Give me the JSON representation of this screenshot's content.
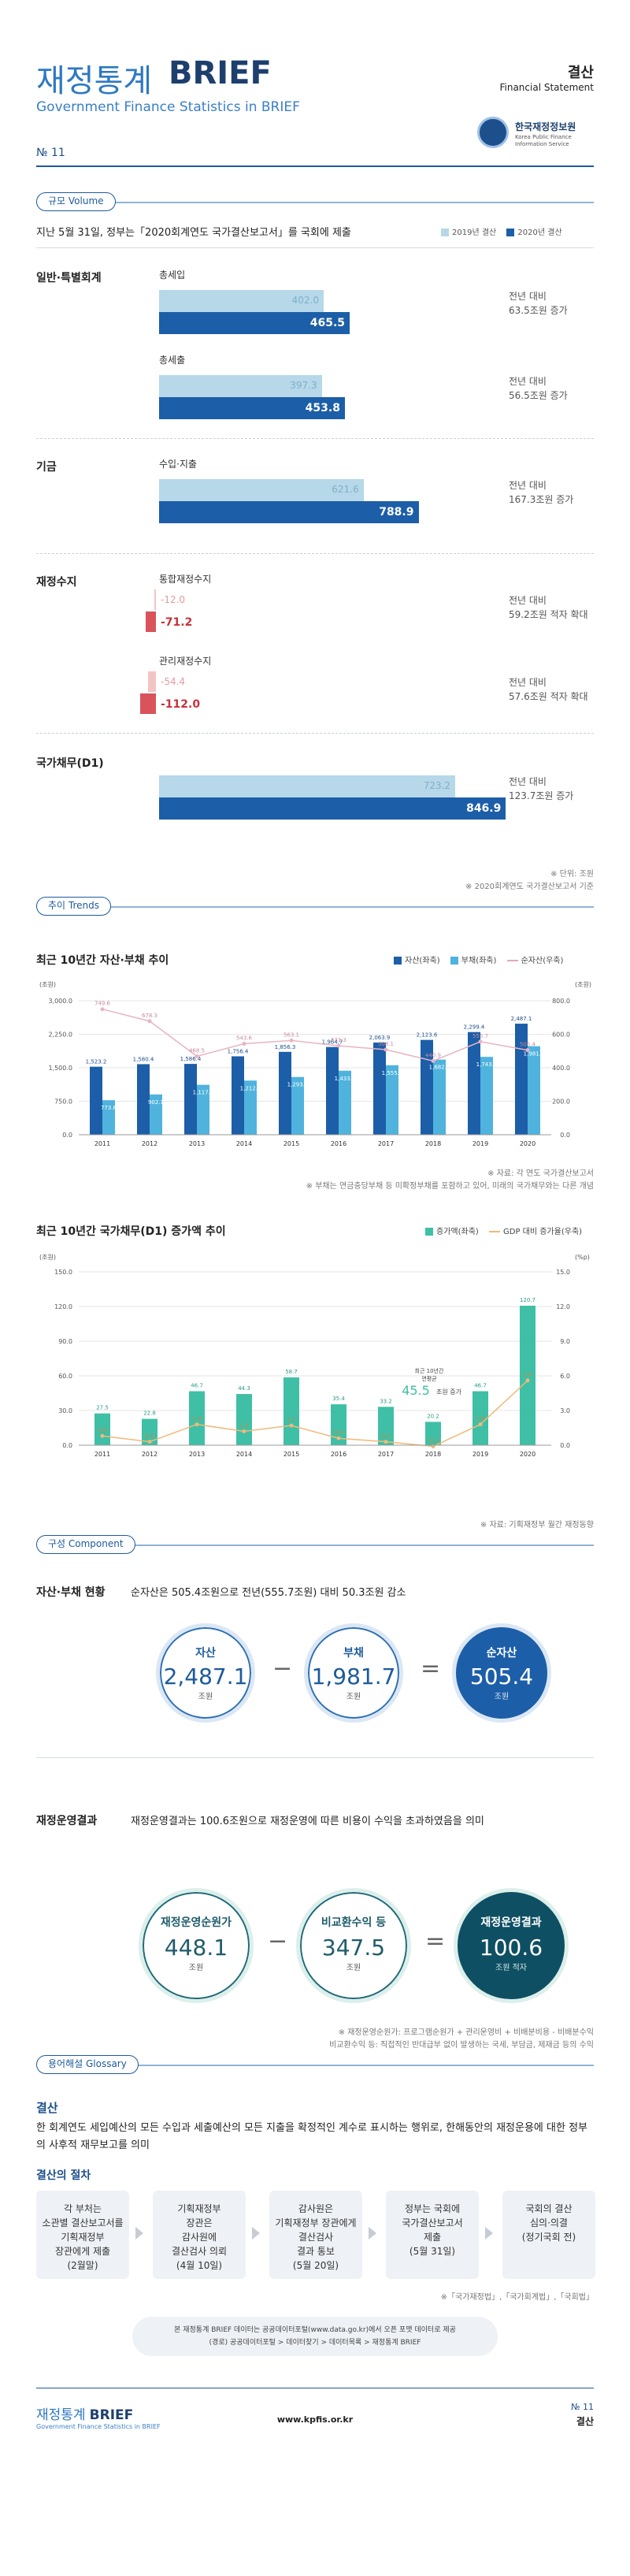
{
  "header": {
    "title_kr": "재정통계",
    "title_brief": "BRIEF",
    "subtitle": "Government Finance Statistics in BRIEF",
    "topic_kr": "결산",
    "topic_en": "Financial Statement",
    "org_kr": "한국재정정보원",
    "org_en": "Korea Public Finance Information Service",
    "issue": "№ 11"
  },
  "volume": {
    "label": "규모 Volume",
    "intro": "지난 5월 31일, 정부는「2020회계연도 국가결산보고서」를 국회에 제출",
    "legend_2019": "2019년 결산",
    "legend_2020": "2020년 결산",
    "groups": [
      {
        "category": "일반·특별회계",
        "items": [
          {
            "name": "총세입",
            "v2019": "402.0",
            "v2020": "465.5",
            "cmp1": "전년 대비",
            "cmp2": "63.5조원 증가"
          },
          {
            "name": "총세출",
            "v2019": "397.3",
            "v2020": "453.8",
            "cmp1": "전년 대비",
            "cmp2": "56.5조원 증가"
          }
        ]
      },
      {
        "category": "기금",
        "items": [
          {
            "name": "수입·지출",
            "v2019": "621.6",
            "v2020": "788.9",
            "cmp1": "전년 대비",
            "cmp2": "167.3조원 증가"
          }
        ]
      },
      {
        "category": "재정수지",
        "items": [
          {
            "name": "통합재정수지",
            "v2019": "-12.0",
            "v2020": "-71.2",
            "cmp1": "전년 대비",
            "cmp2": "59.2조원 적자 확대"
          },
          {
            "name": "관리재정수지",
            "v2019": "-54.4",
            "v2020": "-112.0",
            "cmp1": "전년 대비",
            "cmp2": "57.6조원 적자 확대"
          }
        ]
      },
      {
        "category": "국가채무(D1)",
        "items": [
          {
            "name": "",
            "v2019": "723.2",
            "v2020": "846.9",
            "cmp1": "전년 대비",
            "cmp2": "123.7조원 증가"
          }
        ]
      }
    ],
    "note1": "※ 단위: 조원",
    "note2": "※ 2020회계연도 국가결산보고서 기준"
  },
  "trends": {
    "label": "추이 Trends",
    "chart1": {
      "title": "최근 10년간 자산·부채 추이",
      "legend": [
        "자산(좌축)",
        "부채(좌축)",
        "순자산(우축)"
      ],
      "unit_left": "(조원)",
      "unit_right": "(조원)",
      "notes": [
        "※ 자료: 각 연도 국가결산보고서",
        "※ 부채는 연금충당부채 등 미확정부채를 포함하고 있어, 미래의 국가채무와는 다른 개념"
      ]
    },
    "chart2": {
      "title": "최근 10년간 국가채무(D1) 증가액 추이",
      "legend": [
        "증가액(좌축)",
        "GDP 대비 증가율(우축)"
      ],
      "unit_left": "(조원)",
      "unit_right": "(%p)",
      "callout1": "최근 10년간",
      "callout2": "연평균",
      "callout_value": "45.5",
      "callout_unit": "조원 증가",
      "note": "※ 자료: 기획재정부 월간 재정동향"
    }
  },
  "chart_data": [
    {
      "type": "bar",
      "title": "최근 10년간 자산·부채 추이",
      "categories": [
        "2011",
        "2012",
        "2013",
        "2014",
        "2015",
        "2016",
        "2017",
        "2018",
        "2019",
        "2020"
      ],
      "series": [
        {
          "name": "자산(좌축)",
          "values": [
            1523.2,
            1580.4,
            1586.4,
            1756.4,
            1856.3,
            1964.7,
            2063.9,
            2123.6,
            2299.4,
            2487.1
          ]
        },
        {
          "name": "부채(좌축)",
          "values": [
            773.6,
            902.1,
            1117.9,
            1212.8,
            1293.2,
            1433.4,
            1555.8,
            1682.7,
            1743.7,
            1981.7
          ]
        },
        {
          "name": "순자산(우축)",
          "values": [
            749.6,
            678.3,
            468.5,
            543.6,
            563.1,
            531.3,
            508.1,
            440.9,
            555.7,
            505.4
          ]
        }
      ],
      "ylim_left": [
        0,
        3000
      ],
      "yticks_left": [
        "0.0",
        "750.0",
        "1,500.0",
        "2,250.0",
        "3,000.0"
      ],
      "ylim_right": [
        0,
        800
      ],
      "yticks_right": [
        "0.0",
        "200.0",
        "400.0",
        "600.0",
        "800.0"
      ]
    },
    {
      "type": "bar",
      "title": "최근 10년간 국가채무(D1) 증가액 추이",
      "categories": [
        "2011",
        "2012",
        "2013",
        "2014",
        "2015",
        "2016",
        "2017",
        "2018",
        "2019",
        "2020"
      ],
      "series": [
        {
          "name": "증가액(좌축)",
          "values": [
            27.5,
            22.8,
            46.7,
            44.3,
            58.7,
            35.4,
            33.2,
            20.2,
            46.7,
            120.7
          ]
        },
        {
          "name": "GDP 대비 증가율(우축)",
          "values": [
            0.8,
            0.3,
            1.8,
            1.2,
            1.7,
            0.6,
            0.3,
            -0.1,
            1.8,
            5.6
          ]
        }
      ],
      "ylim_left": [
        0,
        150
      ],
      "yticks_left": [
        "0.0",
        "30.0",
        "60.0",
        "90.0",
        "120.0",
        "150.0"
      ],
      "ylim_right": [
        -1,
        15
      ],
      "yticks_right": [
        "0.0",
        "3.0",
        "6.0",
        "9.0",
        "12.0",
        "15.0"
      ]
    }
  ],
  "component": {
    "label": "구성 Component",
    "s1": {
      "title": "자산·부채 현황",
      "desc": "순자산은 505.4조원으로 전년(555.7조원) 대비 50.3조원 감소",
      "a_label": "자산",
      "a_value": "2,487.1",
      "b_label": "부채",
      "b_value": "1,981.7",
      "c_label": "순자산",
      "c_value": "505.4",
      "unit": "조원"
    },
    "s2": {
      "title": "재정운영결과",
      "desc": "재정운영결과는 100.6조원으로 재정운영에 따른 비용이 수익을 초과하였음을 의미",
      "a_label": "재정운영순원가",
      "a_value": "448.1",
      "b_label": "비교환수익 등",
      "b_value": "347.5",
      "c_label": "재정운영결과",
      "c_value": "100.6",
      "unit": "조원",
      "c_unit": "조원 적자"
    },
    "note1": "※ 재정운영순원가: 프로그램순원가 + 관리운영비 + 비배분비용 - 비배분수익",
    "note2": "비교환수익 등: 직접적인 반대급부 없이 발생하는 국세, 부담금, 제재금 등의 수익"
  },
  "glossary": {
    "label": "용어해설 Glossary",
    "term": "결산",
    "definition": "한 회계연도 세입예산의 모든 수입과 세출예산의 모든 지출을 확정적인 계수로 표시하는 행위로, 한해동안의 재정운용에 대한 정부의 사후적 재무보고를 의미",
    "proc_title": "결산의 절차",
    "steps": [
      [
        "각 부처는",
        "소관별 결산보고서를",
        "기획재정부",
        "장관에게 제출",
        "(2월말)"
      ],
      [
        "기획재정부",
        "장관은",
        "감사원에",
        "결산검사 의뢰",
        "(4월 10일)"
      ],
      [
        "감사원은",
        "기획재정부 장관에게",
        "결산검사",
        "결과 통보",
        "(5월 20일)"
      ],
      [
        "정부는 국회에",
        "국가결산보고서",
        "제출",
        "(5월 31일)"
      ],
      [
        "국회의 결산",
        "심의·의결",
        "(정기국회 전)"
      ]
    ],
    "source": "※「국가재정법」,「국가회계법」,「국회법」"
  },
  "footer": {
    "line1": "본 재정통계 BRIEF 데이터는 공공데이터포털(www.data.go.kr)에서 오픈 포맷 데이터로 제공",
    "line2": "(경로) 공공데이터포털 > 데이터찾기 > 데이터목록 > 재정통계 BRIEF",
    "brand_kr": "재정통계",
    "brand": "BRIEF",
    "brand_sub": "Government Finance Statistics in BRIEF",
    "url": "www.kpfis.or.kr",
    "issue": "№ 11",
    "topic": "결산"
  },
  "colors": {
    "navy": "#1d4f8c",
    "bar2019": "#b6d8e8",
    "bar2020": "#1c5ea8",
    "deficit2019": "#f3c4c4",
    "deficit2020": "#d9535b",
    "teal": "#3fbfa6",
    "teal_dark": "#0e4f63"
  }
}
